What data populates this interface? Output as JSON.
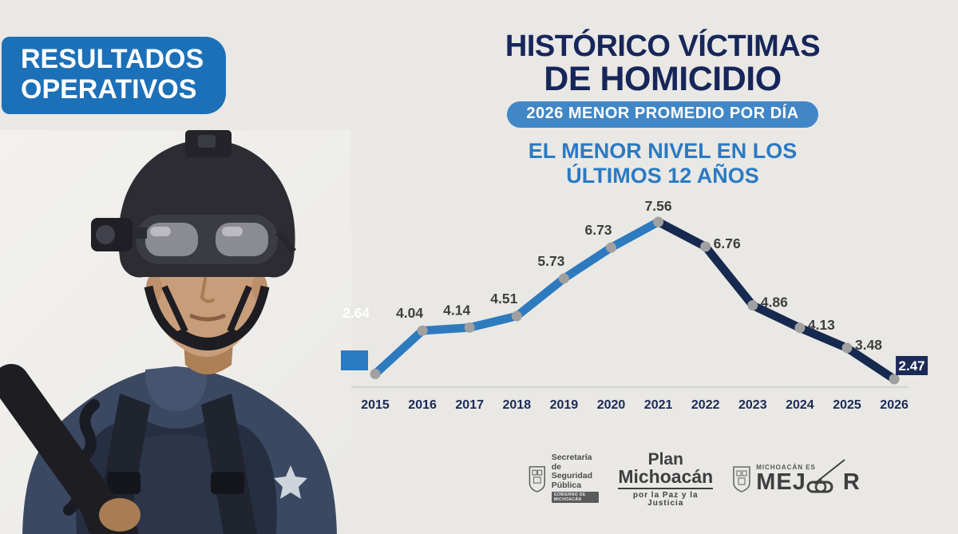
{
  "banner": {
    "line1": "RESULTADOS",
    "line2": "OPERATIVOS"
  },
  "header": {
    "title_line1": "HISTÓRICO VÍCTIMAS",
    "title_line2": "DE HOMICIDIO",
    "badge": "2026 MENOR PROMEDIO POR DÍA",
    "subtitle_line1": "EL MENOR NIVEL EN LOS",
    "subtitle_line2": "ÚLTIMOS 12 AÑOS"
  },
  "chart_data": {
    "type": "line",
    "title": "Histórico víctimas de homicidio (promedio por día)",
    "categories": [
      "2015",
      "2016",
      "2017",
      "2018",
      "2019",
      "2020",
      "2021",
      "2022",
      "2023",
      "2024",
      "2025",
      "2026"
    ],
    "values": [
      2.64,
      4.04,
      4.14,
      4.51,
      5.73,
      6.73,
      7.56,
      6.76,
      4.86,
      4.13,
      3.48,
      2.47
    ],
    "xlabel": "",
    "ylabel": "",
    "ylim": [
      2,
      8
    ],
    "grid": false,
    "legend": "none",
    "annotations": {
      "first_value_label_style": "white text with blue square marker",
      "last_value_label_style": "white text in navy box",
      "peak_year": "2021"
    },
    "colors": {
      "rising_line": "#2d7abf",
      "falling_line": "#16294f",
      "dot": "#a0a0a0",
      "value_label": "#3e3e3e",
      "year_label": "#1b2a56",
      "axis_line": "#d8d6d3",
      "first_label_text": "#ffffff",
      "first_marker_fill": "#2b7bc0",
      "last_box_fill": "#1b2a56",
      "last_box_text": "#ffffff"
    }
  },
  "footer": {
    "ssp": {
      "line1": "Secretaría",
      "line2": "de Seguridad",
      "line3": "Pública",
      "sub": "GOBIERNO DE MICHOACÁN"
    },
    "plan": {
      "line1": "Plan",
      "line2": "Michoacán",
      "tagline": "por la Paz y la Justicia"
    },
    "mejor": {
      "small": "MICHOACÁN ES",
      "big_left": "MEJ",
      "big_right": "R"
    }
  },
  "icons": [
    "officer-illustration",
    "ssp-shield-icon",
    "state-shield-icon",
    "cable-car-icon",
    "star-badge-icon"
  ],
  "theme": {
    "background": "#e9e8e5",
    "banner_blue": "#1c70b8",
    "badge_blue": "#4187c7",
    "title_navy": "#17265a",
    "subtitle_blue": "#2b7ac2"
  }
}
